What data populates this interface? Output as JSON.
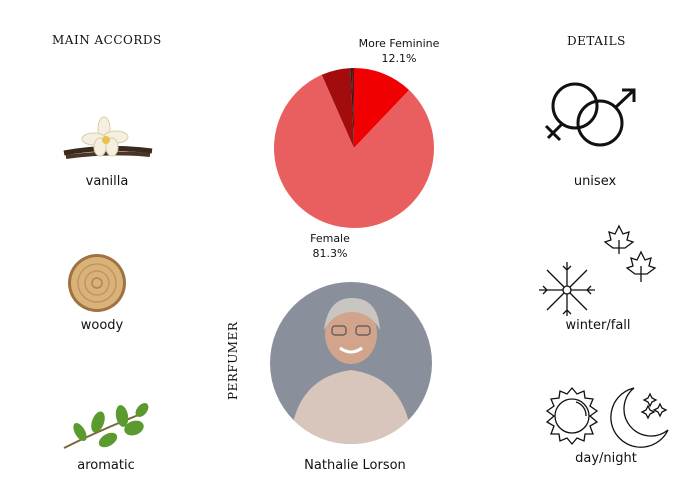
{
  "headings": {
    "main_accords": "MAIN ACCORDS",
    "details": "DETAILS",
    "perfumer": "PERFUMER"
  },
  "accords": [
    {
      "label": "vanilla",
      "icon": "vanilla-flower-image"
    },
    {
      "label": "woody",
      "icon": "wood-slice-image"
    },
    {
      "label": "aromatic",
      "icon": "herb-sprig-image"
    }
  ],
  "details": [
    {
      "label": "unisex",
      "icon": "gender-symbols-icon"
    },
    {
      "label": "winter/fall",
      "icon": "snowflake-maple-leaves-icon"
    },
    {
      "label": "day/night",
      "icon": "sun-moon-icon"
    }
  ],
  "perfumer": {
    "name": "Nathalie Lorson"
  },
  "chart_data": {
    "type": "pie",
    "start": "top",
    "direction": "clockwise",
    "slices": [
      {
        "label": "More Feminine",
        "value": 12.1,
        "display": "12.1%",
        "color": "#f00000"
      },
      {
        "label": "Female",
        "value": 81.3,
        "display": "81.3%",
        "color": "#e95f5f"
      },
      {
        "value": 5.9,
        "color": "#a30c0c"
      },
      {
        "value": 0.4,
        "color": "#222222"
      },
      {
        "value": 0.3,
        "color": "#7a0a0a"
      }
    ]
  }
}
